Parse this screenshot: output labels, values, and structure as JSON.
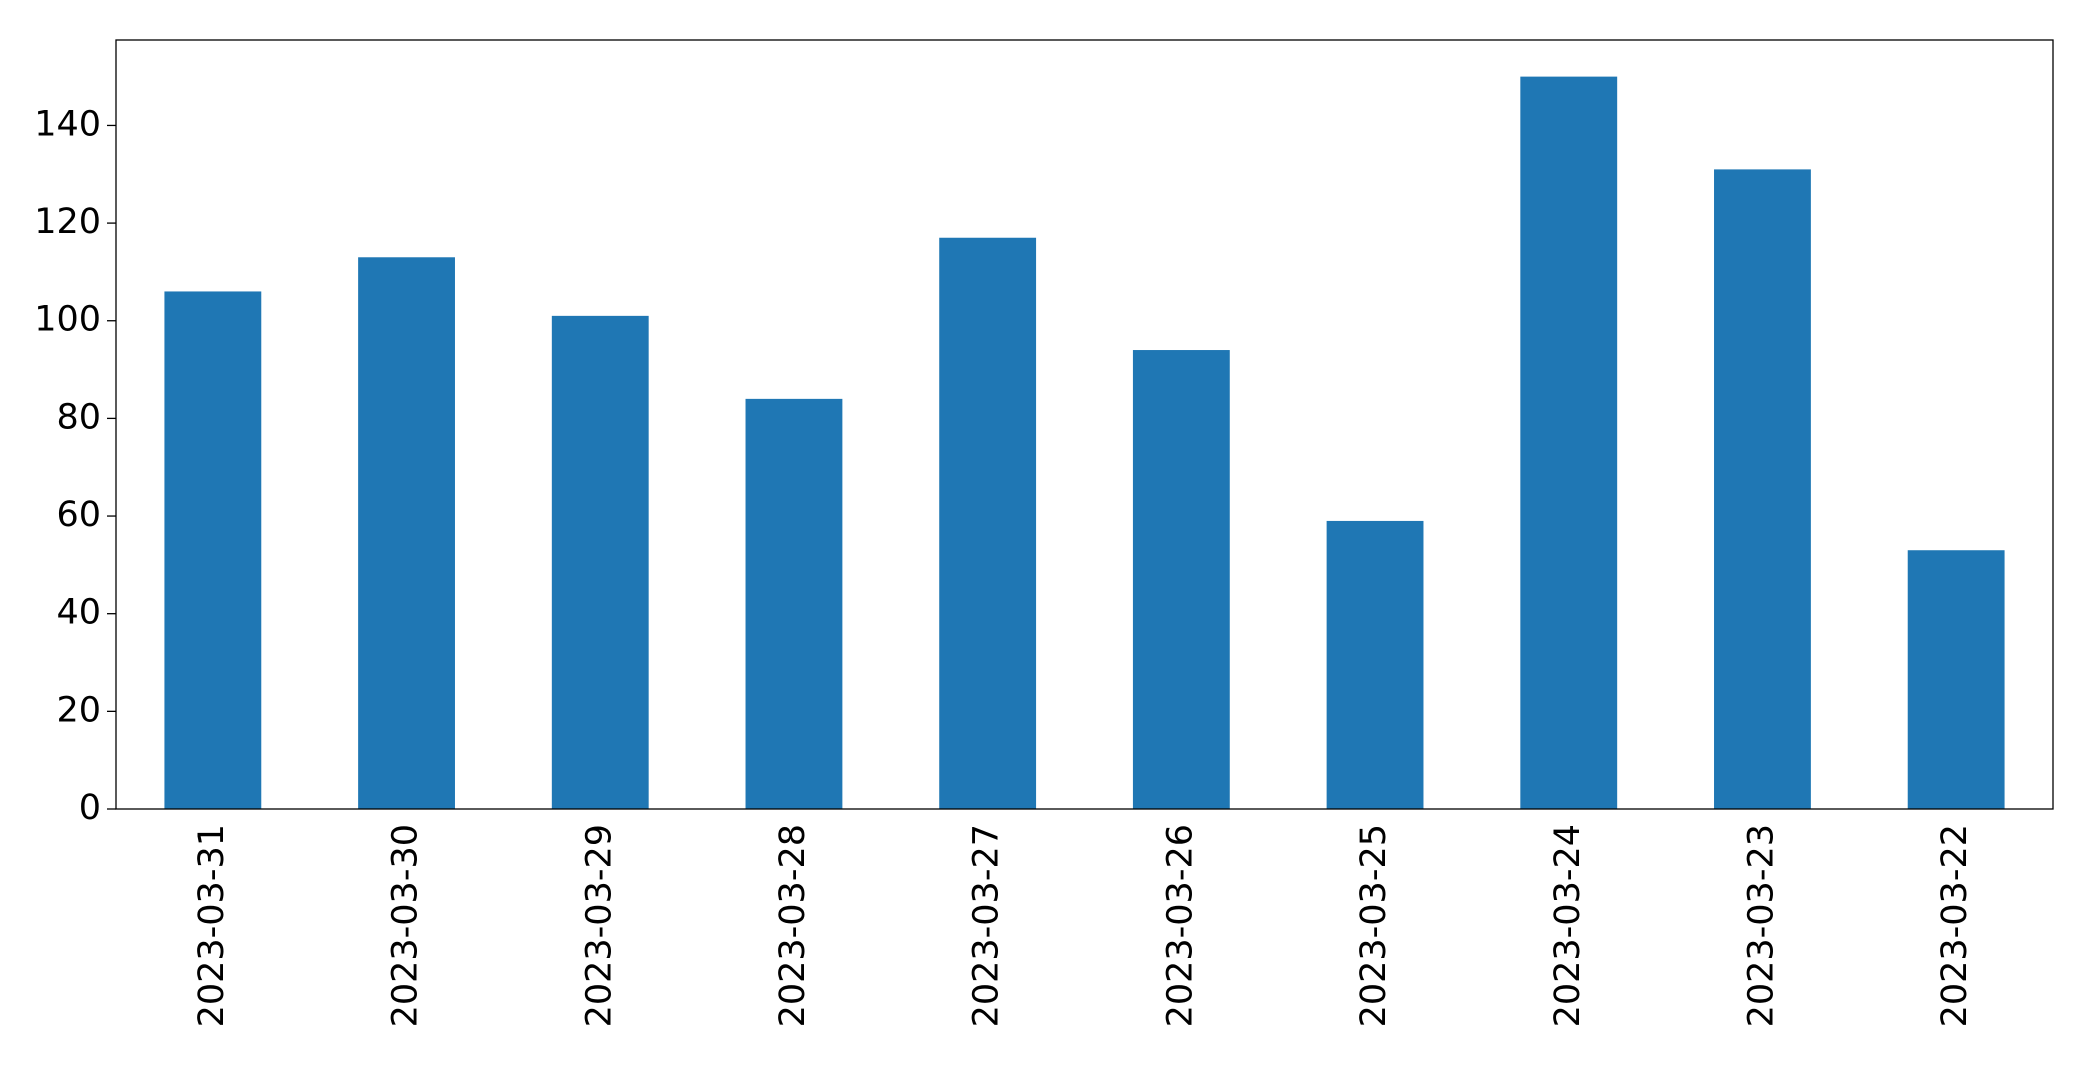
{
  "chart_data": {
    "type": "bar",
    "categories": [
      "2023-03-31",
      "2023-03-30",
      "2023-03-29",
      "2023-03-28",
      "2023-03-27",
      "2023-03-26",
      "2023-03-25",
      "2023-03-24",
      "2023-03-23",
      "2023-03-22"
    ],
    "values": [
      106,
      113,
      101,
      84,
      117,
      94,
      59,
      150,
      131,
      53
    ],
    "color": "#1f77b4",
    "ylim": [
      0,
      157.5
    ],
    "yticks": [
      0,
      20,
      40,
      60,
      80,
      100,
      120,
      140
    ],
    "grid": false
  }
}
